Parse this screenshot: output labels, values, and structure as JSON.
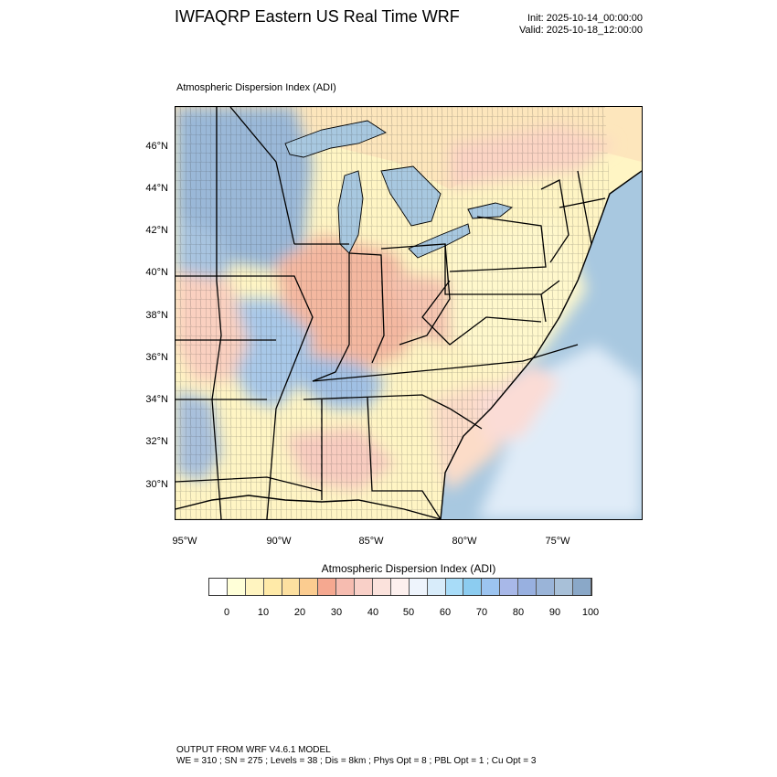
{
  "header": {
    "title": "IWFAQRP Eastern US Real Time WRF",
    "init": "Init: 2025-10-14_00:00:00",
    "valid": "Valid: 2025-10-18_12:00:00"
  },
  "map": {
    "subtitle": "Atmospheric Dispersion Index   (ADI)",
    "lat_labels": [
      "46°N",
      "44°N",
      "42°N",
      "40°N",
      "38°N",
      "36°N",
      "34°N",
      "32°N",
      "30°N"
    ],
    "lon_labels": [
      "95°W",
      "90°W",
      "85°W",
      "80°W",
      "75°W"
    ],
    "colors": {
      "ocean": "#a8c8e0",
      "low": "#fff8c8",
      "mid": "#f6c0a8",
      "high": "#a0c0e0"
    }
  },
  "colorbar": {
    "title": "Atmospheric Dispersion Index  (ADI)",
    "labels": [
      "0",
      "10",
      "20",
      "30",
      "40",
      "50",
      "60",
      "70",
      "80",
      "90",
      "100"
    ],
    "colors": [
      "#ffffff",
      "#ffffd8",
      "#fff4c0",
      "#ffeaa8",
      "#fde0a0",
      "#fbcc90",
      "#f5a890",
      "#f6bcb0",
      "#f9d0c8",
      "#fbe2dc",
      "#fdf0ee",
      "#eef4fc",
      "#d8ecfa",
      "#a8dcf8",
      "#8cccf0",
      "#9cc4f0",
      "#a8b8e8",
      "#98b0e0",
      "#9ab4d8",
      "#a8c0d8",
      "#8aa8c8"
    ]
  },
  "footer": {
    "line1": "OUTPUT FROM WRF V4.6.1 MODEL",
    "line2": "WE = 310 ; SN = 275 ; Levels = 38 ; Dis = 8km ; Phys Opt = 8 ; PBL Opt = 1 ; Cu Opt = 3"
  }
}
